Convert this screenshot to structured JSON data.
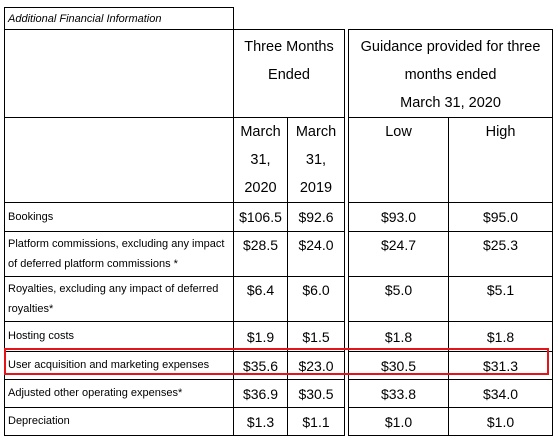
{
  "table_title": "Additional Financial Information",
  "headers": {
    "three_months_ended": "Three Months Ended",
    "guidance": "Guidance provided for three months ended March 31, 2020",
    "guidance_line1": "Guidance provided for three",
    "guidance_line2": "months ended",
    "guidance_line3": "March 31, 2020",
    "col_mar2020": [
      "March",
      "31,",
      "2020"
    ],
    "col_mar2019": [
      "March",
      "31,",
      "2019"
    ],
    "col_low": "Low",
    "col_high": "High",
    "three_line1": "Three Months",
    "three_line2": "Ended"
  },
  "rows": [
    {
      "label": "Bookings",
      "label_lines": [
        "Bookings"
      ],
      "mar2020": "$106.5",
      "mar2019": "$92.6",
      "low": "$93.0",
      "high": "$95.0"
    },
    {
      "label": "Platform commissions, excluding any impact of deferred platform commissions *",
      "label_lines": [
        "Platform commissions, excluding any impact",
        "of deferred platform commissions *"
      ],
      "mar2020": "$28.5",
      "mar2019": "$24.0",
      "low": "$24.7",
      "high": "$25.3"
    },
    {
      "label": "Royalties, excluding any impact of deferred royalties*",
      "label_lines": [
        "Royalties, excluding any impact of deferred",
        "royalties*"
      ],
      "mar2020": "$6.4",
      "mar2019": "$6.0",
      "low": "$5.0",
      "high": "$5.1"
    },
    {
      "label": "Hosting costs",
      "label_lines": [
        "Hosting costs"
      ],
      "mar2020": "$1.9",
      "mar2019": "$1.5",
      "low": "$1.8",
      "high": "$1.8"
    },
    {
      "label": "User acquisition and marketing expenses",
      "label_lines": [
        "User acquisition and marketing expenses"
      ],
      "mar2020": "$35.6",
      "mar2019": "$23.0",
      "low": "$30.5",
      "high": "$31.3"
    },
    {
      "label": "Adjusted other operating expenses*",
      "label_lines": [
        "Adjusted other operating expenses*"
      ],
      "mar2020": "$36.9",
      "mar2019": "$30.5",
      "low": "$33.8",
      "high": "$34.0"
    },
    {
      "label": "Depreciation",
      "label_lines": [
        "Depreciation"
      ],
      "mar2020": "$1.3",
      "mar2019": "$1.1",
      "low": "$1.0",
      "high": "$1.0"
    }
  ],
  "highlight": {
    "row_label": "User acquisition and marketing expenses",
    "color": "#e5141b"
  }
}
